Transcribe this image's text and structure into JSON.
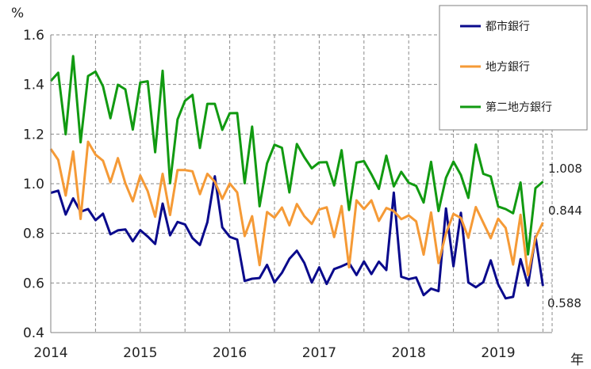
{
  "chart_data": {
    "type": "line",
    "y_unit": "%",
    "x_unit": "年",
    "ylim": [
      0.4,
      1.6
    ],
    "y_ticks": [
      "0.4",
      "0.6",
      "0.8",
      "1.0",
      "1.2",
      "1.4",
      "1.6"
    ],
    "x_ticks": [
      "2014",
      "2015",
      "2016",
      "2017",
      "2018",
      "2019"
    ],
    "x_range": [
      0,
      67
    ],
    "grid": "dashed",
    "legend_placement": "top-right",
    "series": [
      {
        "name": "都市銀行",
        "color": "#0a0a8c",
        "end_label": "0.588",
        "values": [
          0.963,
          0.972,
          0.876,
          0.941,
          0.887,
          0.898,
          0.853,
          0.879,
          0.796,
          0.812,
          0.816,
          0.768,
          0.813,
          0.787,
          0.757,
          0.92,
          0.792,
          0.846,
          0.836,
          0.781,
          0.753,
          0.845,
          1.03,
          0.824,
          0.786,
          0.775,
          0.608,
          0.617,
          0.62,
          0.673,
          0.602,
          0.641,
          0.697,
          0.73,
          0.681,
          0.602,
          0.663,
          0.596,
          0.656,
          0.667,
          0.681,
          0.632,
          0.687,
          0.636,
          0.686,
          0.652,
          0.964,
          0.625,
          0.615,
          0.622,
          0.551,
          0.577,
          0.567,
          0.9,
          0.667,
          0.883,
          0.602,
          0.583,
          0.603,
          0.691,
          0.594,
          0.538,
          0.544,
          0.696,
          0.59,
          0.787,
          0.588
        ]
      },
      {
        "name": "地方銀行",
        "color": "#f59a36",
        "end_label": "0.844",
        "values": [
          1.14,
          1.096,
          0.952,
          1.13,
          0.858,
          1.169,
          1.117,
          1.093,
          1.006,
          1.103,
          1.002,
          0.929,
          1.033,
          0.97,
          0.867,
          1.04,
          0.874,
          1.055,
          1.055,
          1.05,
          0.958,
          1.04,
          1.008,
          0.939,
          1.001,
          0.965,
          0.789,
          0.869,
          0.672,
          0.886,
          0.863,
          0.904,
          0.832,
          0.918,
          0.869,
          0.838,
          0.896,
          0.905,
          0.785,
          0.91,
          0.663,
          0.933,
          0.898,
          0.933,
          0.85,
          0.902,
          0.89,
          0.857,
          0.872,
          0.848,
          0.714,
          0.884,
          0.68,
          0.8,
          0.878,
          0.862,
          0.782,
          0.906,
          0.843,
          0.78,
          0.859,
          0.822,
          0.674,
          0.875,
          0.631,
          0.781,
          0.844
        ]
      },
      {
        "name": "第二地方銀行",
        "color": "#119a11",
        "end_label": "1.008",
        "values": [
          1.414,
          1.447,
          1.199,
          1.514,
          1.167,
          1.434,
          1.452,
          1.393,
          1.264,
          1.399,
          1.38,
          1.218,
          1.408,
          1.413,
          1.127,
          1.455,
          1.002,
          1.259,
          1.334,
          1.358,
          1.144,
          1.322,
          1.322,
          1.217,
          1.284,
          1.285,
          1.002,
          1.23,
          0.909,
          1.082,
          1.157,
          1.145,
          0.965,
          1.16,
          1.107,
          1.062,
          1.086,
          1.087,
          0.993,
          1.135,
          0.894,
          1.085,
          1.091,
          1.038,
          0.979,
          1.113,
          0.989,
          1.048,
          1.004,
          0.991,
          0.924,
          1.088,
          0.89,
          1.024,
          1.089,
          1.035,
          0.943,
          1.158,
          1.04,
          1.029,
          0.908,
          0.898,
          0.881,
          1.005,
          0.715,
          0.982,
          1.008
        ]
      }
    ]
  }
}
